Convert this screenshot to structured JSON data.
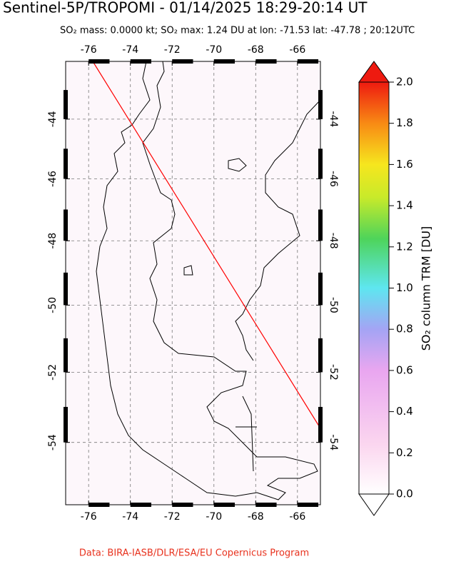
{
  "chart_data": {
    "type": "map",
    "title": "Sentinel-5P/TROPOMI - 01/14/2025 18:29-20:14 UT",
    "subtitle": "SO₂ mass: 0.0000 kt; SO₂ max: 1.24 DU at lon: -71.53 lat: -47.78 ; 20:12UTC",
    "credit": "Data: BIRA-IASB/DLR/ESA/EU Copernicus Program",
    "xlim": [
      -77.1,
      -64.9
    ],
    "xticks": [
      -76,
      -74,
      -72,
      -70,
      -68,
      -66
    ],
    "ylim": [
      -55.7,
      -42
    ],
    "yticks": [
      -54,
      -52,
      -50,
      -48,
      -46,
      -44
    ],
    "colorbar": {
      "label": "SO₂ column TRM [DU]",
      "lim": [
        0,
        2
      ],
      "ticks": [
        {
          "value": 0,
          "label": "0.0"
        },
        0.2,
        0.4,
        0.6,
        0.8,
        {
          "value": 1,
          "label": "1.0"
        },
        1.2,
        1.4,
        1.6,
        1.8,
        {
          "value": 2,
          "label": "2.0"
        }
      ]
    },
    "grid": true
  }
}
